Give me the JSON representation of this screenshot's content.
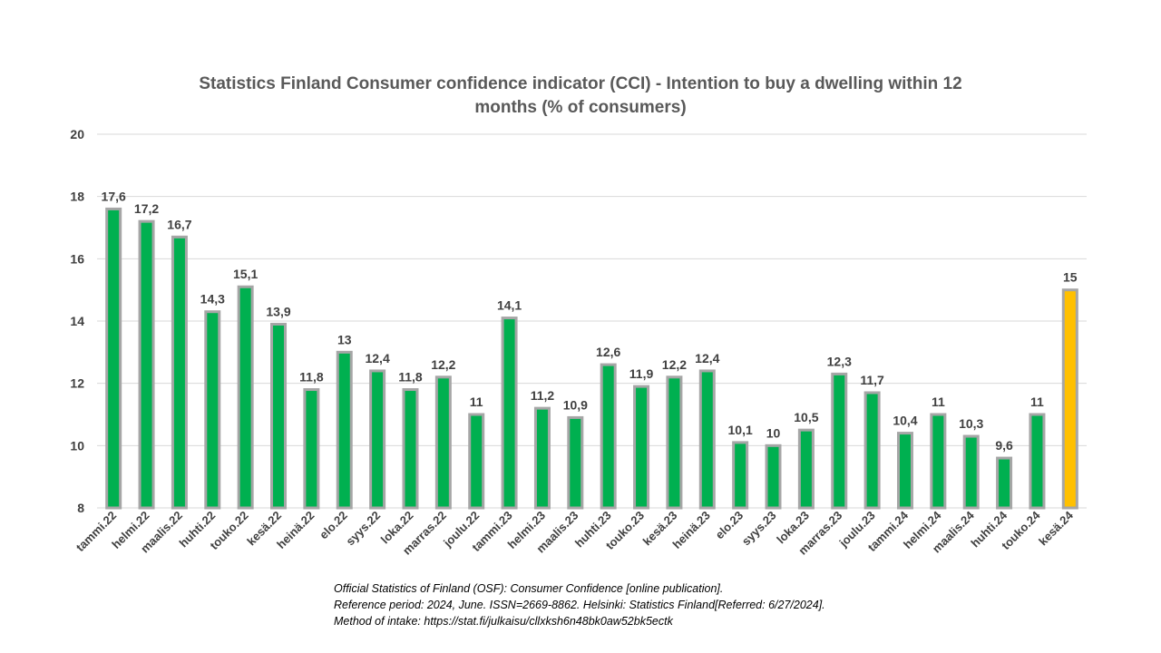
{
  "chart_data": {
    "type": "bar",
    "title_lines": [
      "Statistics Finland Consumer confidence indicator (CCI) - Intention to buy a dwelling within 12",
      "months (% of consumers)"
    ],
    "categories": [
      "tammi.22",
      "helmi.22",
      "maalis.22",
      "huhti.22",
      "touko.22",
      "kesä.22",
      "heinä.22",
      "elo.22",
      "syys.22",
      "loka.22",
      "marras.22",
      "joulu.22",
      "tammi.23",
      "helmi.23",
      "maalis.23",
      "huhti.23",
      "touko.23",
      "kesä.23",
      "heinä.23",
      "elo.23",
      "syys.23",
      "loka.23",
      "marras.23",
      "joulu.23",
      "tammi.24",
      "helmi.24",
      "maalis.24",
      "huhti.24",
      "touko.24",
      "kesä.24"
    ],
    "values": [
      17.6,
      17.2,
      16.7,
      14.3,
      15.1,
      13.9,
      11.8,
      13,
      12.4,
      11.8,
      12.2,
      11,
      14.1,
      11.2,
      10.9,
      12.6,
      11.9,
      12.2,
      12.4,
      10.1,
      10,
      10.5,
      12.3,
      11.7,
      10.4,
      11,
      10.3,
      9.6,
      11,
      15
    ],
    "value_labels": [
      "17,6",
      "17,2",
      "16,7",
      "14,3",
      "15,1",
      "13,9",
      "11,8",
      "13",
      "12,4",
      "11,8",
      "12,2",
      "11",
      "14,1",
      "11,2",
      "10,9",
      "12,6",
      "11,9",
      "12,2",
      "12,4",
      "10,1",
      "10",
      "10,5",
      "12,3",
      "11,7",
      "10,4",
      "11",
      "10,3",
      "9,6",
      "11",
      "15"
    ],
    "highlight_index": 29,
    "ylim": [
      8,
      20
    ],
    "yticks": [
      8,
      10,
      12,
      14,
      16,
      18,
      20
    ],
    "grid": true,
    "colors": {
      "bar": "#00b050",
      "highlight": "#ffc000",
      "bar_border": "#a6a6a6"
    }
  },
  "source_lines": [
    "Official Statistics of Finland (OSF): Consumer Confidence [online publication].",
    "Reference period: 2024, June. ISSN=2669-8862. Helsinki: Statistics Finland[Referred: 6/27/2024].",
    "Method of intake: https://stat.fi/julkaisu/cllxksh6n48bk0aw52bk5ectk"
  ]
}
